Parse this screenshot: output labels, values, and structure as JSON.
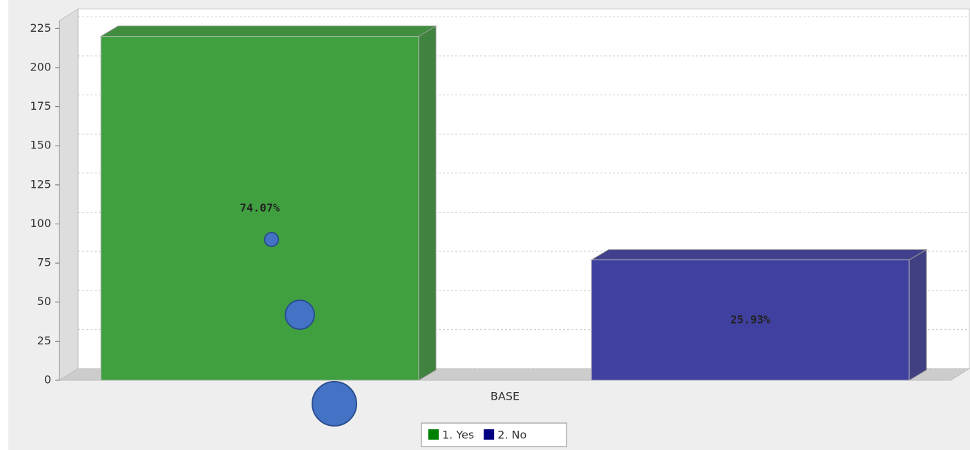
{
  "chart_data": {
    "type": "bar3d",
    "categories": [
      "BASE"
    ],
    "series": [
      {
        "name": "1. Yes",
        "color": "#008000",
        "values": [
          220
        ],
        "labels": [
          "74.07%"
        ]
      },
      {
        "name": "2. No",
        "color": "#000080",
        "values": [
          77
        ],
        "labels": [
          "25.93%"
        ]
      }
    ],
    "ylim": [
      0,
      230
    ],
    "yticks": [
      0,
      25,
      50,
      75,
      100,
      125,
      150,
      175,
      200,
      225
    ],
    "grid": true,
    "legend": "bottom"
  }
}
